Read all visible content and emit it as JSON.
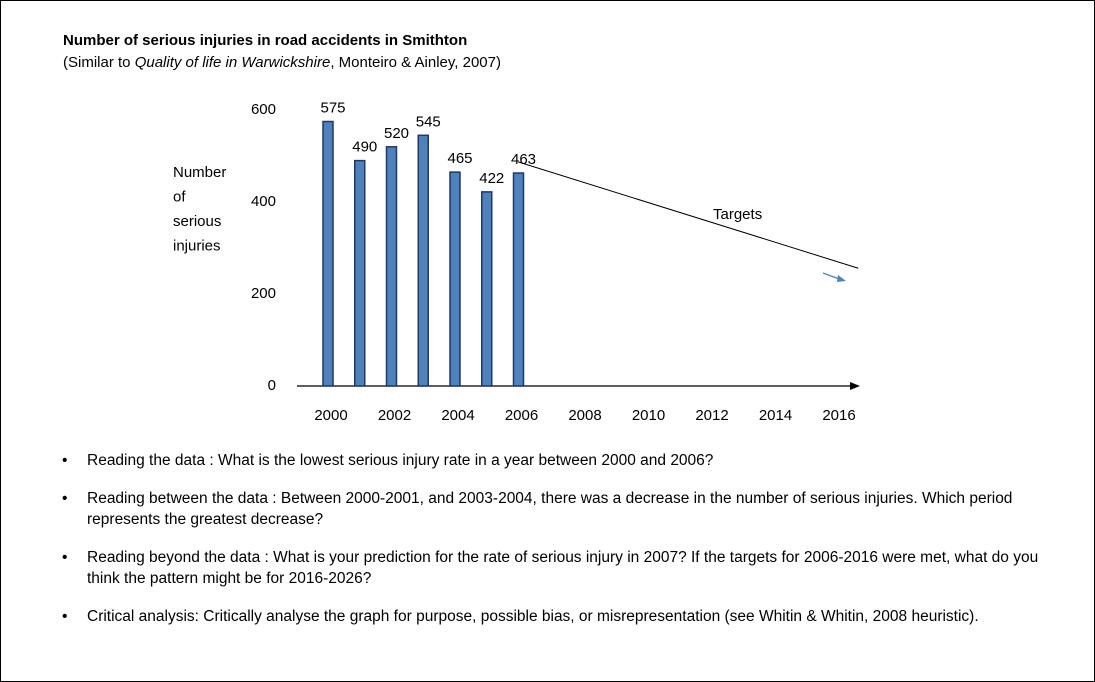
{
  "chart_data": {
    "type": "bar",
    "title": "Number of serious injuries in road accidents in Smithton",
    "subtitle": [
      "(Similar to ",
      "Quality of life in Warwickshire",
      ", Monteiro & Ainley, 2007)"
    ],
    "y_label": [
      "Number",
      "of",
      "serious",
      "injuries"
    ],
    "x": [
      2000,
      2001,
      2002,
      2003,
      2004,
      2005,
      2006
    ],
    "values": [
      575,
      490,
      520,
      545,
      465,
      422,
      463
    ],
    "color": "#4f81bd",
    "xlim": [
      2000,
      2016
    ],
    "xticks": [
      2000,
      2002,
      2004,
      2006,
      2008,
      2010,
      2012,
      2014,
      2016
    ],
    "ylim": [
      0,
      600
    ],
    "yticks": [
      0,
      200,
      400,
      600
    ],
    "grid": false,
    "target": {
      "label": "Targets",
      "x": [
        2006,
        2016.7
      ],
      "values": [
        487,
        256
      ]
    }
  },
  "bullets": [
    "Reading the data : What is the lowest serious injury rate in a year between 2000 and 2006?",
    "Reading between the data : Between 2000-2001, and 2003-2004, there was a decrease in the number of serious injuries. Which period represents the greatest decrease?",
    "Reading beyond the data : What is your prediction for the rate of serious injury in 2007? If the targets for 2006-2016 were met, what do you think the pattern might be for 2016-2026?",
    "Critical analysis: Critically analyse the graph for purpose, possible bias, or misrepresentation (see Whitin & Whitin, 2008 heuristic)."
  ]
}
